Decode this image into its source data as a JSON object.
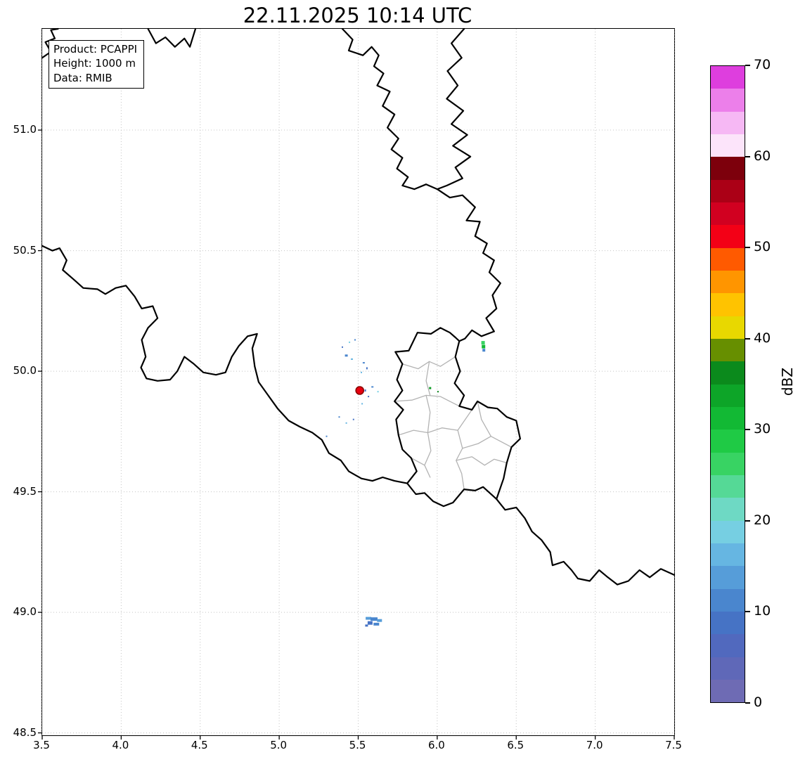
{
  "title": "22.11.2025 10:14 UTC",
  "annotation": {
    "lines": [
      "Product: PCAPPI",
      "Height: 1000 m",
      "Data: RMIB"
    ]
  },
  "axes": {
    "xlim": [
      3.5,
      7.5
    ],
    "ylim": [
      48.49,
      51.42
    ],
    "xticks": [
      "3.5",
      "4.0",
      "4.5",
      "5.0",
      "5.5",
      "6.0",
      "6.5",
      "7.0",
      "7.5"
    ],
    "yticks": [
      "48.5",
      "49.0",
      "49.5",
      "50.0",
      "50.5",
      "51.0"
    ],
    "grid_color": "#c4c4c4"
  },
  "colorbar": {
    "label": "dBZ",
    "ticks": [
      0,
      10,
      20,
      30,
      40,
      50,
      60,
      70
    ],
    "vmin": 0,
    "vmax": 70,
    "colors_bottom_to_top": [
      "#6e6bb4",
      "#5f68b8",
      "#5169be",
      "#4673c5",
      "#4a86ce",
      "#569dd9",
      "#66b6e2",
      "#76cfe2",
      "#6ed9c4",
      "#55d996",
      "#38d363",
      "#1fca45",
      "#12b934",
      "#0da528",
      "#0b8a1c",
      "#678f00",
      "#e8d800",
      "#ffc300",
      "#ff9500",
      "#ff5a00",
      "#f30016",
      "#d10020",
      "#ab0016",
      "#7d000c",
      "#fce4fa",
      "#f6b8f4",
      "#ec7fea",
      "#de3ede"
    ]
  },
  "map": {
    "border_color": "#000000",
    "internal_border_color": "#b3b3b3",
    "borders": [
      [
        [
          3.5,
          51.3
        ],
        [
          3.555,
          51.325
        ],
        [
          3.52,
          51.365
        ],
        [
          3.58,
          51.38
        ],
        [
          3.555,
          51.415
        ],
        [
          3.6,
          51.42
        ]
      ],
      [
        [
          4.17,
          51.42
        ],
        [
          4.22,
          51.36
        ],
        [
          4.28,
          51.385
        ],
        [
          4.34,
          51.345
        ],
        [
          4.4,
          51.38
        ],
        [
          4.435,
          51.345
        ],
        [
          4.47,
          51.42
        ]
      ],
      [
        [
          5.4,
          51.42
        ],
        [
          5.465,
          51.375
        ],
        [
          5.44,
          51.33
        ],
        [
          5.53,
          51.31
        ],
        [
          5.585,
          51.345
        ],
        [
          5.63,
          51.31
        ],
        [
          5.6,
          51.265
        ],
        [
          5.66,
          51.235
        ],
        [
          5.62,
          51.185
        ],
        [
          5.7,
          51.16
        ],
        [
          5.655,
          51.1
        ],
        [
          5.73,
          51.065
        ],
        [
          5.685,
          51.01
        ],
        [
          5.755,
          50.965
        ],
        [
          5.71,
          50.92
        ],
        [
          5.78,
          50.885
        ],
        [
          5.745,
          50.84
        ],
        [
          5.815,
          50.805
        ],
        [
          5.78,
          50.77
        ],
        [
          5.855,
          50.755
        ],
        [
          5.93,
          50.775
        ],
        [
          6.0,
          50.755
        ]
      ],
      [
        [
          6.17,
          51.42
        ],
        [
          6.09,
          51.36
        ],
        [
          6.155,
          51.3
        ],
        [
          6.065,
          51.245
        ],
        [
          6.13,
          51.185
        ],
        [
          6.06,
          51.13
        ],
        [
          6.165,
          51.08
        ],
        [
          6.09,
          51.025
        ],
        [
          6.19,
          50.98
        ],
        [
          6.1,
          50.935
        ],
        [
          6.21,
          50.89
        ],
        [
          6.115,
          50.845
        ],
        [
          6.16,
          50.8
        ],
        [
          6.06,
          50.77
        ],
        [
          6.0,
          50.755
        ]
      ],
      [
        [
          6.0,
          50.755
        ],
        [
          6.08,
          50.72
        ],
        [
          6.16,
          50.73
        ],
        [
          6.24,
          50.68
        ],
        [
          6.185,
          50.625
        ],
        [
          6.27,
          50.62
        ],
        [
          6.24,
          50.56
        ],
        [
          6.315,
          50.53
        ],
        [
          6.29,
          50.49
        ],
        [
          6.36,
          50.46
        ],
        [
          6.33,
          50.41
        ],
        [
          6.4,
          50.365
        ],
        [
          6.35,
          50.315
        ],
        [
          6.375,
          50.26
        ],
        [
          6.31,
          50.22
        ],
        [
          6.36,
          50.165
        ],
        [
          6.28,
          50.145
        ],
        [
          6.22,
          50.17
        ],
        [
          6.175,
          50.135
        ],
        [
          6.14,
          50.125
        ]
      ],
      [
        [
          6.14,
          50.125
        ],
        [
          6.115,
          50.06
        ],
        [
          6.145,
          50.0
        ],
        [
          6.11,
          49.95
        ],
        [
          6.17,
          49.9
        ],
        [
          6.14,
          49.855
        ],
        [
          6.22,
          49.84
        ],
        [
          6.255,
          49.875
        ],
        [
          6.32,
          49.85
        ],
        [
          6.38,
          49.845
        ],
        [
          6.44,
          49.81
        ],
        [
          6.5,
          49.795
        ],
        [
          6.525,
          49.72
        ],
        [
          6.47,
          49.685
        ],
        [
          6.44,
          49.62
        ],
        [
          6.42,
          49.555
        ],
        [
          6.375,
          49.47
        ],
        [
          6.29,
          49.52
        ],
        [
          6.24,
          49.505
        ],
        [
          6.17,
          49.51
        ],
        [
          6.1,
          49.455
        ],
        [
          6.04,
          49.44
        ],
        [
          5.975,
          49.46
        ],
        [
          5.92,
          49.495
        ],
        [
          5.865,
          49.49
        ],
        [
          5.81,
          49.535
        ],
        [
          5.87,
          49.585
        ],
        [
          5.835,
          49.64
        ],
        [
          5.78,
          49.675
        ],
        [
          5.755,
          49.735
        ],
        [
          5.74,
          49.8
        ],
        [
          5.785,
          49.84
        ],
        [
          5.73,
          49.875
        ],
        [
          5.78,
          49.92
        ],
        [
          5.745,
          49.965
        ],
        [
          5.78,
          50.03
        ],
        [
          5.735,
          50.08
        ],
        [
          5.82,
          50.085
        ],
        [
          5.875,
          50.16
        ],
        [
          5.96,
          50.155
        ],
        [
          6.02,
          50.18
        ],
        [
          6.08,
          50.16
        ],
        [
          6.115,
          50.14
        ],
        [
          6.14,
          50.125
        ]
      ],
      [
        [
          3.5,
          50.52
        ],
        [
          3.565,
          50.5
        ],
        [
          3.61,
          50.51
        ],
        [
          3.655,
          50.46
        ],
        [
          3.63,
          50.42
        ],
        [
          3.7,
          50.38
        ],
        [
          3.76,
          50.345
        ],
        [
          3.85,
          50.34
        ],
        [
          3.9,
          50.32
        ],
        [
          3.965,
          50.345
        ],
        [
          4.03,
          50.355
        ],
        [
          4.085,
          50.31
        ],
        [
          4.13,
          50.26
        ],
        [
          4.2,
          50.27
        ],
        [
          4.23,
          50.22
        ],
        [
          4.17,
          50.18
        ],
        [
          4.13,
          50.13
        ],
        [
          4.155,
          50.06
        ],
        [
          4.125,
          50.015
        ],
        [
          4.16,
          49.97
        ],
        [
          4.23,
          49.96
        ],
        [
          4.31,
          49.965
        ],
        [
          4.355,
          50.0
        ],
        [
          4.4,
          50.06
        ],
        [
          4.46,
          50.03
        ],
        [
          4.52,
          49.995
        ],
        [
          4.6,
          49.985
        ],
        [
          4.66,
          49.995
        ],
        [
          4.7,
          50.06
        ],
        [
          4.745,
          50.105
        ],
        [
          4.8,
          50.145
        ],
        [
          4.86,
          50.155
        ],
        [
          4.83,
          50.095
        ],
        [
          4.845,
          50.02
        ],
        [
          4.87,
          49.955
        ],
        [
          4.93,
          49.9
        ],
        [
          4.99,
          49.845
        ],
        [
          5.06,
          49.795
        ],
        [
          5.13,
          49.77
        ],
        [
          5.21,
          49.745
        ],
        [
          5.27,
          49.715
        ],
        [
          5.315,
          49.66
        ],
        [
          5.39,
          49.63
        ],
        [
          5.44,
          49.585
        ],
        [
          5.52,
          49.555
        ],
        [
          5.59,
          49.545
        ],
        [
          5.655,
          49.56
        ],
        [
          5.73,
          49.545
        ],
        [
          5.81,
          49.535
        ]
      ],
      [
        [
          6.375,
          49.47
        ],
        [
          6.43,
          49.425
        ],
        [
          6.5,
          49.435
        ],
        [
          6.555,
          49.39
        ],
        [
          6.6,
          49.335
        ],
        [
          6.66,
          49.3
        ],
        [
          6.715,
          49.25
        ],
        [
          6.73,
          49.195
        ],
        [
          6.8,
          49.21
        ],
        [
          6.85,
          49.175
        ],
        [
          6.89,
          49.14
        ],
        [
          6.965,
          49.13
        ],
        [
          7.025,
          49.175
        ],
        [
          7.08,
          49.145
        ],
        [
          7.14,
          49.115
        ],
        [
          7.21,
          49.13
        ],
        [
          7.28,
          49.175
        ],
        [
          7.345,
          49.145
        ],
        [
          7.415,
          49.18
        ],
        [
          7.5,
          49.155
        ]
      ]
    ],
    "internal_borders": [
      [
        [
          5.78,
          50.03
        ],
        [
          5.88,
          50.01
        ],
        [
          5.95,
          50.04
        ],
        [
          6.02,
          50.02
        ],
        [
          6.115,
          50.06
        ]
      ],
      [
        [
          5.73,
          49.875
        ],
        [
          5.84,
          49.88
        ],
        [
          5.93,
          49.9
        ],
        [
          6.02,
          49.895
        ],
        [
          6.14,
          49.855
        ]
      ],
      [
        [
          5.755,
          49.735
        ],
        [
          5.85,
          49.755
        ],
        [
          5.94,
          49.745
        ],
        [
          6.03,
          49.765
        ],
        [
          6.13,
          49.755
        ],
        [
          6.22,
          49.84
        ]
      ],
      [
        [
          5.95,
          50.04
        ],
        [
          5.93,
          49.96
        ],
        [
          5.955,
          49.9
        ]
      ],
      [
        [
          5.93,
          49.9
        ],
        [
          5.955,
          49.83
        ],
        [
          5.94,
          49.745
        ]
      ],
      [
        [
          5.94,
          49.745
        ],
        [
          5.96,
          49.67
        ],
        [
          5.92,
          49.61
        ],
        [
          5.955,
          49.56
        ]
      ],
      [
        [
          6.13,
          49.755
        ],
        [
          6.16,
          49.68
        ],
        [
          6.12,
          49.63
        ],
        [
          6.155,
          49.575
        ],
        [
          6.17,
          49.51
        ]
      ],
      [
        [
          5.835,
          49.64
        ],
        [
          5.92,
          49.61
        ]
      ],
      [
        [
          6.12,
          49.63
        ],
        [
          6.22,
          49.645
        ],
        [
          6.3,
          49.61
        ],
        [
          6.36,
          49.635
        ],
        [
          6.44,
          49.62
        ]
      ],
      [
        [
          6.16,
          49.68
        ],
        [
          6.26,
          49.7
        ],
        [
          6.34,
          49.73
        ],
        [
          6.47,
          49.685
        ]
      ],
      [
        [
          6.255,
          49.875
        ],
        [
          6.28,
          49.8
        ],
        [
          6.34,
          49.73
        ]
      ]
    ]
  },
  "echoes": {
    "marker": {
      "lon": 5.51,
      "lat": 49.92,
      "r": 5.5,
      "fill": "#e8000f",
      "stroke": "#8b0000"
    },
    "cells": [
      {
        "lon": 5.425,
        "lat": 50.065,
        "w": 4,
        "h": 3,
        "color": "#4a86ce"
      },
      {
        "lon": 5.46,
        "lat": 50.05,
        "w": 3,
        "h": 2,
        "color": "#66b6e2"
      },
      {
        "lon": 5.4,
        "lat": 50.1,
        "w": 2,
        "h": 2,
        "color": "#4673c5"
      },
      {
        "lon": 5.445,
        "lat": 50.12,
        "w": 2,
        "h": 2,
        "color": "#76cfe2"
      },
      {
        "lon": 5.48,
        "lat": 50.13,
        "w": 2,
        "h": 2,
        "color": "#4a86ce"
      },
      {
        "lon": 5.535,
        "lat": 50.035,
        "w": 3,
        "h": 2,
        "color": "#4a86ce"
      },
      {
        "lon": 5.555,
        "lat": 50.012,
        "w": 2,
        "h": 3,
        "color": "#4673c5"
      },
      {
        "lon": 5.52,
        "lat": 49.995,
        "w": 2,
        "h": 2,
        "color": "#66b6e2"
      },
      {
        "lon": 5.59,
        "lat": 49.935,
        "w": 3,
        "h": 2,
        "color": "#4a86ce"
      },
      {
        "lon": 5.625,
        "lat": 49.915,
        "w": 2,
        "h": 2,
        "color": "#76cfe2"
      },
      {
        "lon": 5.565,
        "lat": 49.895,
        "w": 2,
        "h": 2,
        "color": "#4673c5"
      },
      {
        "lon": 5.545,
        "lat": 49.92,
        "w": 2,
        "h": 3,
        "color": "#4673c5"
      },
      {
        "lon": 5.38,
        "lat": 49.81,
        "w": 2,
        "h": 2,
        "color": "#4a86ce"
      },
      {
        "lon": 5.425,
        "lat": 49.785,
        "w": 2,
        "h": 2,
        "color": "#66b6e2"
      },
      {
        "lon": 5.47,
        "lat": 49.8,
        "w": 2,
        "h": 2,
        "color": "#4673c5"
      },
      {
        "lon": 5.3,
        "lat": 49.73,
        "w": 2,
        "h": 2,
        "color": "#4a86ce"
      },
      {
        "lon": 5.525,
        "lat": 49.865,
        "w": 2,
        "h": 2,
        "color": "#66b6e2"
      },
      {
        "lon": 5.955,
        "lat": 49.93,
        "w": 3,
        "h": 3,
        "color": "#0c9b24"
      },
      {
        "lon": 6.005,
        "lat": 49.915,
        "w": 2,
        "h": 2,
        "color": "#0a851b"
      },
      {
        "lon": 6.29,
        "lat": 50.118,
        "w": 5,
        "h": 5,
        "color": "#38d363"
      },
      {
        "lon": 6.293,
        "lat": 50.102,
        "w": 5,
        "h": 5,
        "color": "#12b934"
      },
      {
        "lon": 6.295,
        "lat": 50.087,
        "w": 4,
        "h": 4,
        "color": "#4a86ce"
      },
      {
        "lon": 5.565,
        "lat": 48.975,
        "w": 8,
        "h": 4,
        "color": "#569dd9"
      },
      {
        "lon": 5.6,
        "lat": 48.972,
        "w": 10,
        "h": 5,
        "color": "#4a86ce"
      },
      {
        "lon": 5.635,
        "lat": 48.966,
        "w": 7,
        "h": 4,
        "color": "#569dd9"
      },
      {
        "lon": 5.575,
        "lat": 48.956,
        "w": 7,
        "h": 5,
        "color": "#4673c5"
      },
      {
        "lon": 5.615,
        "lat": 48.951,
        "w": 8,
        "h": 4,
        "color": "#4a86ce"
      },
      {
        "lon": 5.553,
        "lat": 48.945,
        "w": 4,
        "h": 3,
        "color": "#4673c5"
      }
    ]
  }
}
